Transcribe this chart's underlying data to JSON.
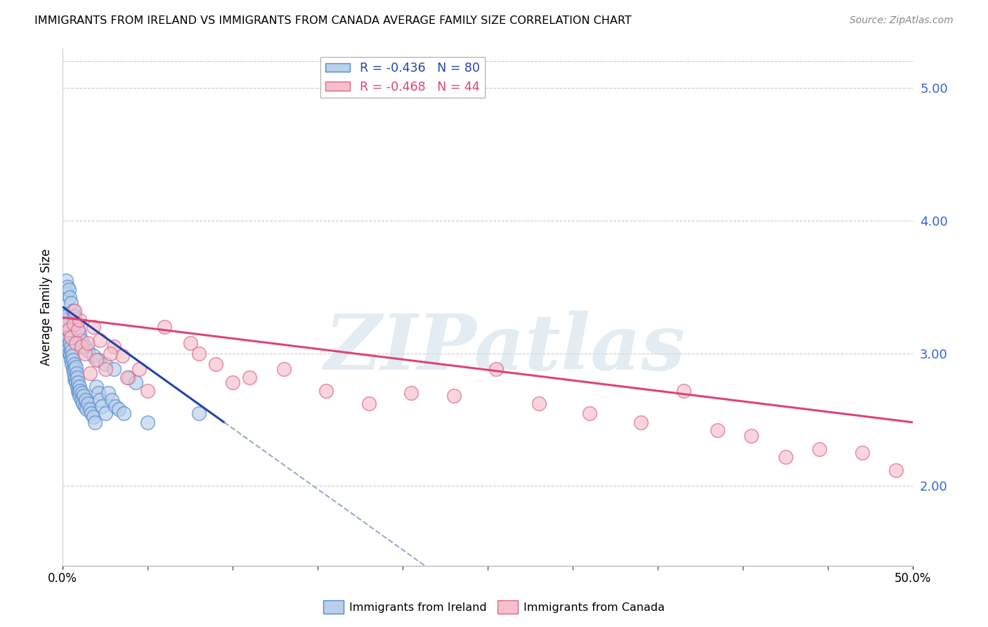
{
  "title": "IMMIGRANTS FROM IRELAND VS IMMIGRANTS FROM CANADA AVERAGE FAMILY SIZE CORRELATION CHART",
  "source": "Source: ZipAtlas.com",
  "ylabel": "Average Family Size",
  "watermark": "ZIPatlas",
  "xmin": 0.0,
  "xmax": 50.0,
  "ymin": 1.4,
  "ymax": 5.3,
  "yticks_right": [
    2.0,
    3.0,
    4.0,
    5.0
  ],
  "ireland_R": -0.436,
  "ireland_N": 80,
  "canada_R": -0.468,
  "canada_N": 44,
  "ireland_color": "#b8d0ea",
  "ireland_edge": "#5588cc",
  "canada_color": "#f5bfcc",
  "canada_edge": "#dd6688",
  "ireland_line_color": "#2244aa",
  "canada_line_color": "#dd4477",
  "dashed_line_color": "#99aacc",
  "grid_color": "#cccccc",
  "right_axis_color": "#3366cc",
  "ireland_line_x0": 0.0,
  "ireland_line_y0": 3.35,
  "ireland_line_x1": 9.5,
  "ireland_line_y1": 2.48,
  "canada_line_x0": 0.0,
  "canada_line_y0": 3.27,
  "canada_line_x1": 50.0,
  "canada_line_y1": 2.48,
  "ireland_solid_end": 9.5,
  "dashed_end": 50.0,
  "ireland_points_x": [
    0.15,
    0.18,
    0.2,
    0.22,
    0.25,
    0.28,
    0.3,
    0.32,
    0.35,
    0.38,
    0.4,
    0.43,
    0.45,
    0.48,
    0.5,
    0.52,
    0.55,
    0.58,
    0.6,
    0.62,
    0.65,
    0.68,
    0.7,
    0.72,
    0.75,
    0.78,
    0.8,
    0.82,
    0.85,
    0.88,
    0.9,
    0.92,
    0.95,
    0.98,
    1.0,
    1.05,
    1.1,
    1.15,
    1.2,
    1.25,
    1.3,
    1.35,
    1.4,
    1.5,
    1.6,
    1.7,
    1.8,
    1.9,
    2.0,
    2.1,
    2.2,
    2.3,
    2.5,
    2.7,
    2.9,
    3.1,
    3.3,
    3.6,
    3.9,
    4.3,
    0.2,
    0.25,
    0.3,
    0.35,
    0.4,
    0.5,
    0.6,
    0.7,
    0.8,
    0.9,
    1.0,
    1.1,
    1.3,
    1.5,
    1.8,
    2.1,
    2.5,
    3.0,
    5.0,
    8.0
  ],
  "ireland_points_y": [
    3.3,
    3.25,
    3.2,
    3.28,
    3.15,
    3.22,
    3.1,
    3.18,
    3.05,
    3.12,
    3.0,
    3.08,
    2.98,
    3.05,
    2.95,
    3.02,
    2.92,
    2.98,
    2.88,
    2.95,
    2.85,
    2.92,
    2.8,
    2.88,
    2.82,
    2.9,
    2.78,
    2.85,
    2.75,
    2.82,
    2.72,
    2.78,
    2.7,
    2.75,
    2.68,
    2.72,
    2.65,
    2.7,
    2.62,
    2.68,
    2.6,
    2.65,
    2.58,
    2.62,
    2.58,
    2.55,
    2.52,
    2.48,
    2.75,
    2.7,
    2.65,
    2.6,
    2.55,
    2.7,
    2.65,
    2.6,
    2.58,
    2.55,
    2.82,
    2.78,
    3.55,
    3.45,
    3.5,
    3.48,
    3.42,
    3.38,
    3.32,
    3.28,
    3.22,
    3.18,
    3.15,
    3.1,
    3.05,
    3.02,
    2.98,
    2.95,
    2.92,
    2.88,
    2.48,
    2.55
  ],
  "canada_points_x": [
    0.2,
    0.35,
    0.5,
    0.65,
    0.8,
    0.9,
    1.0,
    1.1,
    1.3,
    1.5,
    1.8,
    2.0,
    2.2,
    2.5,
    3.0,
    3.5,
    4.5,
    6.0,
    7.5,
    9.0,
    11.0,
    13.0,
    15.5,
    18.0,
    20.5,
    23.0,
    25.5,
    28.0,
    31.0,
    34.0,
    36.5,
    38.5,
    40.5,
    42.5,
    44.5,
    47.0,
    49.0,
    8.0,
    10.0,
    5.0,
    2.8,
    1.6,
    0.7,
    3.8
  ],
  "canada_points_y": [
    3.22,
    3.18,
    3.12,
    3.22,
    3.08,
    3.18,
    3.25,
    3.05,
    3.0,
    3.08,
    3.2,
    2.95,
    3.1,
    2.88,
    3.05,
    2.98,
    2.88,
    3.2,
    3.08,
    2.92,
    2.82,
    2.88,
    2.72,
    2.62,
    2.7,
    2.68,
    2.88,
    2.62,
    2.55,
    2.48,
    2.72,
    2.42,
    2.38,
    2.22,
    2.28,
    2.25,
    2.12,
    3.0,
    2.78,
    2.72,
    3.0,
    2.85,
    3.32,
    2.82
  ]
}
